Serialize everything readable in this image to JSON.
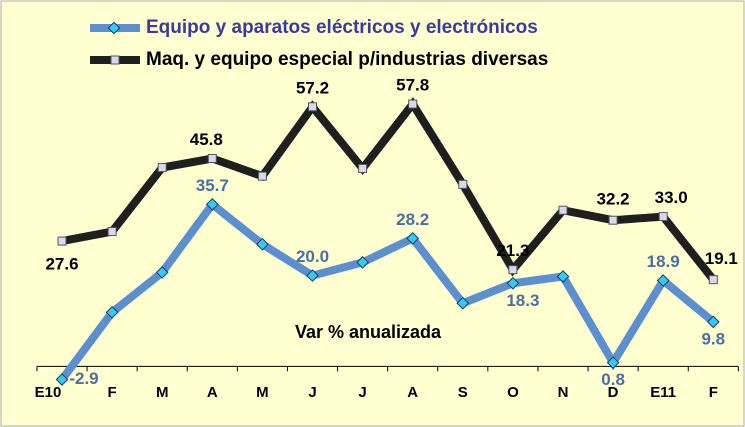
{
  "chart_data": {
    "type": "line",
    "annotation": "Var % anualizada",
    "categories": [
      "E10",
      "F",
      "M",
      "A",
      "M",
      "J",
      "J",
      "A",
      "S",
      "O",
      "N",
      "D",
      "E11",
      "F"
    ],
    "ylim": [
      -5,
      62
    ],
    "series": [
      {
        "name": "Equipo y aparatos eléctricos y electrónicos",
        "color": "#5b8fd0",
        "values": [
          -2.9,
          11.9,
          20.7,
          35.7,
          26.9,
          20.0,
          22.9,
          28.2,
          13.9,
          18.3,
          19.8,
          0.8,
          18.9,
          9.8
        ],
        "value_labels": [
          "-2.9",
          null,
          null,
          "35.7",
          null,
          "20.0",
          null,
          "28.2",
          null,
          "18.3",
          null,
          "0.8",
          "18.9",
          "9.8"
        ]
      },
      {
        "name": "Maq. y equipo especial p/industrias diversas",
        "color": "#1f1f1f",
        "values": [
          27.6,
          29.7,
          43.8,
          45.8,
          41.9,
          57.2,
          43.6,
          57.8,
          40.1,
          21.3,
          34.4,
          32.2,
          33.0,
          19.1
        ],
        "value_labels": [
          "27.6",
          null,
          null,
          "45.8",
          null,
          "57.2",
          null,
          "57.8",
          null,
          "21.3",
          null,
          "32.2",
          "33.0",
          "19.1"
        ]
      }
    ]
  }
}
